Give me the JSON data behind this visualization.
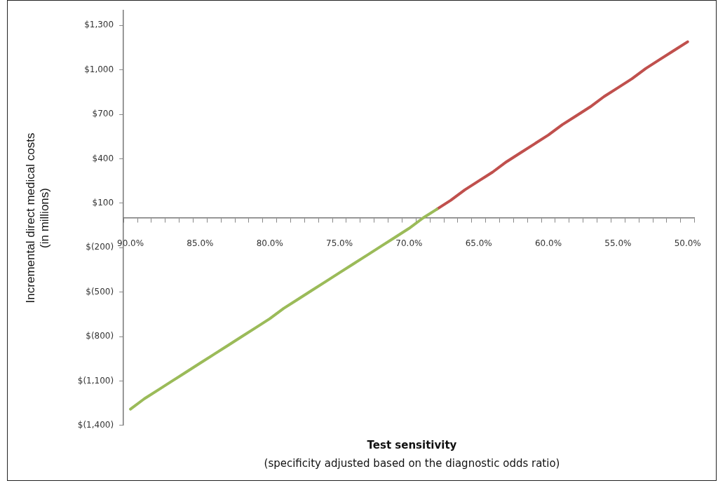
{
  "chart_data": {
    "type": "line",
    "xlabel": "Test sensitivity",
    "ylabel": "Incremental direct medical costs\n(in millions)",
    "annotations": [
      "(specificity adjusted based on the diagnostic odds ratio)"
    ],
    "categories": [
      "90.0%",
      null,
      null,
      null,
      null,
      "85.0%",
      null,
      null,
      null,
      null,
      "80.0%",
      null,
      null,
      null,
      null,
      "75.0%",
      null,
      null,
      null,
      null,
      "70.0%",
      null,
      null,
      null,
      null,
      "65.0%",
      null,
      null,
      null,
      null,
      "60.0%",
      null,
      null,
      null,
      null,
      "55.0%",
      null,
      null,
      null,
      null,
      "50.0%"
    ],
    "series": [
      {
        "color": "#9bbb59",
        "values": [
          -1290,
          -1220,
          -1160,
          -1100,
          -1040,
          -980,
          -920,
          -860,
          -800,
          -740,
          -680,
          -610,
          -550,
          -490,
          -430,
          -370,
          -310,
          -250,
          -190,
          -130,
          -70,
          0,
          60,
          null,
          null,
          null,
          null,
          null,
          null,
          null,
          null,
          null,
          null,
          null,
          null,
          null,
          null,
          null,
          null,
          null,
          null
        ]
      },
      {
        "color": "#c0504d",
        "values": [
          null,
          null,
          null,
          null,
          null,
          null,
          null,
          null,
          null,
          null,
          null,
          null,
          null,
          null,
          null,
          null,
          null,
          null,
          null,
          null,
          null,
          null,
          60,
          120,
          190,
          250,
          310,
          380,
          440,
          500,
          560,
          630,
          690,
          750,
          820,
          880,
          940,
          1010,
          1070,
          1130,
          1190
        ]
      }
    ],
    "ylim": [
      -1400,
      1400
    ],
    "yticks": [
      {
        "value": -1400,
        "label": "$(1,400)"
      },
      {
        "value": -1100,
        "label": "$(1,100)"
      },
      {
        "value": -800,
        "label": "$(800)"
      },
      {
        "value": -500,
        "label": "$(500)"
      },
      {
        "value": -200,
        "label": "$(200)"
      },
      {
        "value": 100,
        "label": "$100"
      },
      {
        "value": 400,
        "label": "$400"
      },
      {
        "value": 700,
        "label": "$700"
      },
      {
        "value": 1000,
        "label": "$1,000"
      },
      {
        "value": 1300,
        "label": "$1,300"
      }
    ],
    "grid": false,
    "legend": false,
    "marker": "none",
    "line_style": "solid"
  }
}
